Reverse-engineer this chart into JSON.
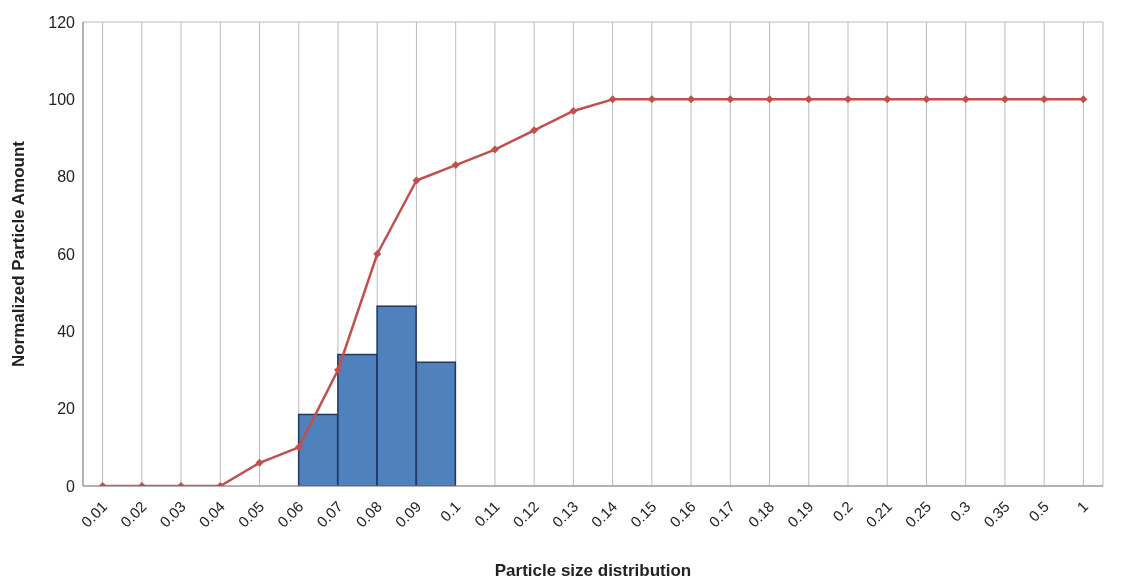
{
  "chart_data": {
    "type": "line",
    "xlabel": "Particle size distribution",
    "ylabel": "Normalized Particle Amount",
    "categories": [
      "0.01",
      "0.02",
      "0.03",
      "0.04",
      "0.05",
      "0.06",
      "0.07",
      "0.08",
      "0.09",
      "0.1",
      "0.11",
      "0.12",
      "0.13",
      "0.14",
      "0.15",
      "0.16",
      "0.17",
      "0.18",
      "0.19",
      "0.2",
      "0.21",
      "0.25",
      "0.3",
      "0.35",
      "0.5",
      "1"
    ],
    "series": [
      {
        "type": "bar",
        "color": "#4f81bd",
        "values": [
          null,
          null,
          null,
          null,
          null,
          18.5,
          34,
          46.5,
          32,
          null,
          null,
          null,
          null,
          null,
          null,
          null,
          null,
          null,
          null,
          null,
          null,
          null,
          null,
          null,
          null,
          null
        ]
      },
      {
        "color": "#c0504d",
        "values": [
          0,
          0,
          0,
          0,
          6,
          10,
          30,
          60,
          79,
          83,
          87,
          92,
          97,
          100,
          100,
          100,
          100,
          100,
          100,
          100,
          100,
          100,
          100,
          100,
          100,
          100
        ]
      }
    ],
    "ylim": [
      0,
      120
    ],
    "yticks": [
      0,
      20,
      40,
      60,
      80,
      100,
      120
    ],
    "grid": true,
    "legend": false,
    "marker": "diamond",
    "line_style": "solid"
  }
}
